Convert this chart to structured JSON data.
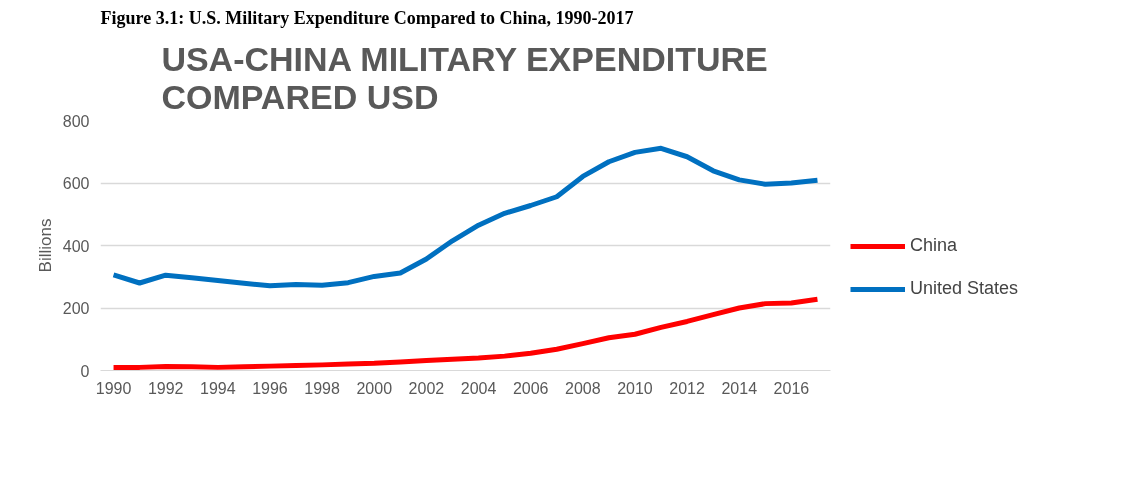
{
  "chart_data": {
    "type": "line",
    "title": "USA-CHINA MILITARY EXPENDITURE\nCOMPARED USD",
    "ylabel": "Billions",
    "annotations": [
      "Figure 3.1: U.S. Military Expenditure Compared to China, 1990-2017"
    ],
    "x": [
      1990,
      1991,
      1992,
      1993,
      1994,
      1995,
      1996,
      1997,
      1998,
      1999,
      2000,
      2001,
      2002,
      2003,
      2004,
      2005,
      2006,
      2007,
      2008,
      2009,
      2010,
      2011,
      2012,
      2013,
      2014,
      2015,
      2016,
      2017
    ],
    "series": [
      {
        "name": "China",
        "color": "#ff0000",
        "values": [
          10,
          10,
          13,
          12,
          10,
          12,
          14,
          16,
          18,
          21,
          23,
          27,
          32,
          36,
          40,
          46,
          55,
          68,
          86,
          105,
          116,
          138,
          157,
          179,
          200,
          214,
          216,
          228
        ]
      },
      {
        "name": "United States",
        "color": "#0070c0",
        "values": [
          306,
          280,
          305,
          297,
          288,
          279,
          271,
          275,
          273,
          281,
          301,
          312,
          357,
          415,
          465,
          503,
          528,
          556,
          621,
          668,
          698,
          711,
          684,
          639,
          610,
          596,
          600,
          609
        ]
      }
    ],
    "xlim": [
      1989.5,
      2017.5
    ],
    "xticks": [
      1990,
      1992,
      1994,
      1996,
      1998,
      2000,
      2002,
      2004,
      2006,
      2008,
      2010,
      2012,
      2014,
      2016
    ],
    "ylim": [
      0,
      800
    ],
    "yticks": [
      0,
      200,
      400,
      600,
      800
    ],
    "grid": "y",
    "legend": "right",
    "marker": "none",
    "line_style": "solid"
  }
}
